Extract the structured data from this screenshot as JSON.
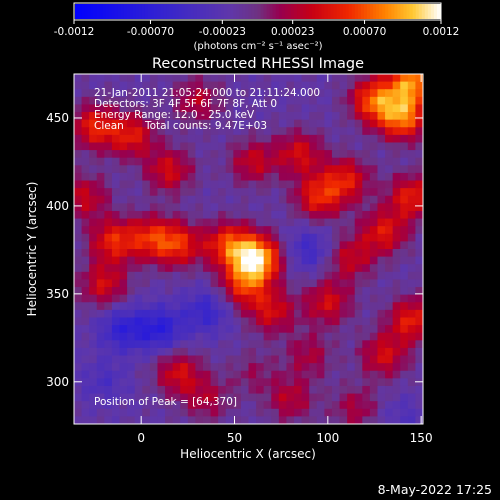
{
  "chart_data": {
    "type": "heatmap",
    "title": "Reconstructed RHESSI Image",
    "xlabel": "Heliocentric X (arcsec)",
    "ylabel": "Heliocentric Y (arcsec)",
    "xlim": [
      -36,
      151
    ],
    "ylim": [
      276,
      475
    ],
    "xticks": [
      0,
      50,
      100,
      150
    ],
    "yticks": [
      300,
      350,
      400,
      450
    ],
    "colorbar": {
      "range": [
        -0.0012,
        0.0012
      ],
      "tick_values": [
        -0.0012,
        -0.0007,
        -0.00023,
        0.00023,
        0.0007,
        0.0012
      ],
      "tick_labels": [
        "-0.0012",
        "-0.00070",
        "-0.00023",
        "0.00023",
        "0.00070",
        "0.0012"
      ],
      "unit_label": "(photons cm⁻² s⁻¹ asec⁻²)"
    },
    "annotations": {
      "time_range": "21-Jan-2011 21:05:24.000 to 21:11:24.000",
      "detectors": "Detectors: 3F 4F 5F 6F 7F 8F, Att 0",
      "energy": "Energy Range: 12.0 - 25.0 keV",
      "method": "Clean",
      "counts": "Total counts: 9.47E+03",
      "peak": "Position of Peak = [64,370]"
    },
    "peak_position": [
      64,
      370
    ],
    "grid": false,
    "intensity_sources": [
      {
        "x": 62,
        "y": 370,
        "value": 1.0
      },
      {
        "x": 47,
        "y": 378,
        "value": 0.62
      },
      {
        "x": 55,
        "y": 355,
        "value": 0.55
      },
      {
        "x": 70,
        "y": 340,
        "value": 0.45
      },
      {
        "x": 20,
        "y": 378,
        "value": 0.55
      },
      {
        "x": 5,
        "y": 382,
        "value": 0.5
      },
      {
        "x": -15,
        "y": 380,
        "value": 0.55
      },
      {
        "x": -20,
        "y": 355,
        "value": 0.45
      },
      {
        "x": -30,
        "y": 405,
        "value": 0.4
      },
      {
        "x": -25,
        "y": 445,
        "value": 0.55
      },
      {
        "x": -5,
        "y": 440,
        "value": 0.5
      },
      {
        "x": 15,
        "y": 420,
        "value": 0.45
      },
      {
        "x": 30,
        "y": 460,
        "value": 0.35
      },
      {
        "x": 60,
        "y": 425,
        "value": 0.4
      },
      {
        "x": 85,
        "y": 430,
        "value": 0.45
      },
      {
        "x": 95,
        "y": 405,
        "value": 0.55
      },
      {
        "x": 110,
        "y": 415,
        "value": 0.5
      },
      {
        "x": 125,
        "y": 460,
        "value": 0.7
      },
      {
        "x": 140,
        "y": 450,
        "value": 0.75
      },
      {
        "x": 145,
        "y": 470,
        "value": 0.8
      },
      {
        "x": 145,
        "y": 405,
        "value": 0.55
      },
      {
        "x": 130,
        "y": 385,
        "value": 0.5
      },
      {
        "x": 112,
        "y": 370,
        "value": 0.4
      },
      {
        "x": 100,
        "y": 345,
        "value": 0.45
      },
      {
        "x": 145,
        "y": 335,
        "value": 0.55
      },
      {
        "x": 130,
        "y": 315,
        "value": 0.45
      },
      {
        "x": 90,
        "y": 315,
        "value": 0.3
      },
      {
        "x": 20,
        "y": 305,
        "value": 0.45
      },
      {
        "x": 35,
        "y": 290,
        "value": 0.3
      },
      {
        "x": 80,
        "y": 290,
        "value": 0.35
      },
      {
        "x": 115,
        "y": 285,
        "value": 0.3
      },
      {
        "x": 60,
        "y": 305,
        "value": 0.2
      },
      {
        "x": 10,
        "y": 330,
        "value": -0.45
      },
      {
        "x": -10,
        "y": 330,
        "value": -0.4
      },
      {
        "x": 35,
        "y": 340,
        "value": -0.35
      },
      {
        "x": 90,
        "y": 375,
        "value": -0.3
      },
      {
        "x": -20,
        "y": 300,
        "value": -0.2
      },
      {
        "x": 140,
        "y": 280,
        "value": -0.15
      }
    ]
  },
  "footer": {
    "timestamp": "8-May-2022 17:25"
  }
}
